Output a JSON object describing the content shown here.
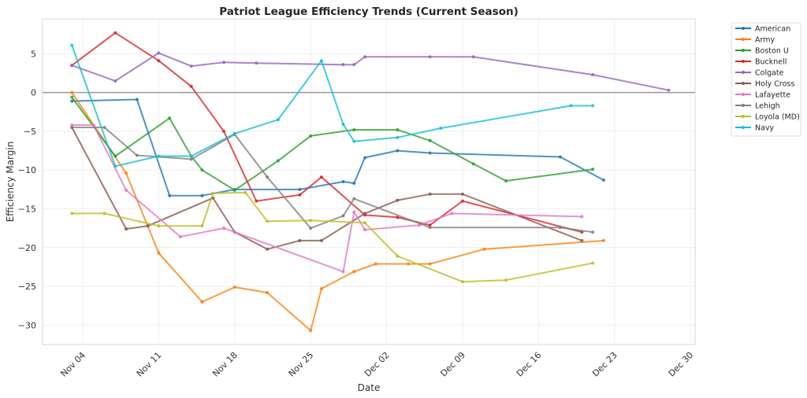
{
  "chart_data": {
    "type": "line",
    "title": "Patriot League Efficiency Trends (Current Season)",
    "xlabel": "Date",
    "ylabel": "Efficiency Margin",
    "x_range": [
      "Nov 01",
      "Dec 31"
    ],
    "ylim": [
      -32.5,
      9.5
    ],
    "x_ticks": [
      "Nov 04",
      "Nov 11",
      "Nov 18",
      "Nov 25",
      "Dec 02",
      "Dec 09",
      "Dec 16",
      "Dec 23",
      "Dec 30"
    ],
    "y_ticks": [
      5,
      0,
      -5,
      -10,
      -15,
      -20,
      -25,
      -30
    ],
    "y_tick_labels": [
      "5",
      "0",
      "−5",
      "−10",
      "−15",
      "−20",
      "−25",
      "−30"
    ],
    "grid": true,
    "reference_line": 0,
    "legend_position": "outside-top-right",
    "series": [
      {
        "name": "American",
        "color": "#1f77b4",
        "x": [
          "Nov 03",
          "Nov 09",
          "Nov 12",
          "Nov 15",
          "Nov 18",
          "Nov 24",
          "Nov 28",
          "Nov 29",
          "Nov 30",
          "Dec 03",
          "Dec 06",
          "Dec 18",
          "Dec 22"
        ],
        "values": [
          -1.1,
          -0.9,
          -13.3,
          -13.3,
          -12.5,
          -12.5,
          -11.5,
          -11.7,
          -8.4,
          -7.5,
          -7.8,
          -8.3,
          -11.3
        ]
      },
      {
        "name": "Army",
        "color": "#ff7f0e",
        "x": [
          "Nov 03",
          "Nov 08",
          "Nov 11",
          "Nov 15",
          "Nov 18",
          "Nov 21",
          "Nov 25",
          "Nov 26",
          "Nov 29",
          "Dec 01",
          "Dec 04",
          "Dec 06",
          "Dec 11",
          "Dec 22"
        ],
        "values": [
          0.0,
          -10.4,
          -20.7,
          -27.0,
          -25.1,
          -25.8,
          -30.7,
          -25.3,
          -23.1,
          -22.1,
          -22.1,
          -22.1,
          -20.2,
          -19.1
        ]
      },
      {
        "name": "Boston U",
        "color": "#2ca02c",
        "x": [
          "Nov 03",
          "Nov 07",
          "Nov 12",
          "Nov 14",
          "Nov 15",
          "Nov 18",
          "Nov 22",
          "Nov 25",
          "Nov 29",
          "Dec 03",
          "Dec 06",
          "Dec 10",
          "Dec 13",
          "Dec 21"
        ],
        "values": [
          -0.6,
          -8.2,
          -3.3,
          -8.2,
          -10.0,
          -12.6,
          -8.8,
          -5.6,
          -4.8,
          -4.8,
          -6.2,
          -9.2,
          -11.4,
          -9.9
        ]
      },
      {
        "name": "Bucknell",
        "color": "#d62728",
        "x": [
          "Nov 03",
          "Nov 07",
          "Nov 11",
          "Nov 14",
          "Nov 17",
          "Nov 20",
          "Nov 24",
          "Nov 26",
          "Nov 30",
          "Dec 03",
          "Dec 06",
          "Dec 09",
          "Dec 20"
        ],
        "values": [
          3.5,
          7.7,
          4.1,
          0.8,
          -5.0,
          -14.0,
          -13.2,
          -10.9,
          -15.8,
          -16.1,
          -17.1,
          -14.0,
          -18.0
        ]
      },
      {
        "name": "Colgate",
        "color": "#9467bd",
        "x": [
          "Nov 03",
          "Nov 07",
          "Nov 11",
          "Nov 14",
          "Nov 17",
          "Nov 20",
          "Nov 28",
          "Nov 29",
          "Nov 30",
          "Dec 06",
          "Dec 10",
          "Dec 21",
          "Dec 28"
        ],
        "values": [
          3.5,
          1.5,
          5.1,
          3.4,
          3.9,
          3.8,
          3.6,
          3.6,
          4.6,
          4.6,
          4.6,
          2.3,
          0.3
        ]
      },
      {
        "name": "Holy Cross",
        "color": "#8c564b",
        "x": [
          "Nov 03",
          "Nov 08",
          "Nov 10",
          "Nov 16",
          "Nov 18",
          "Nov 21",
          "Nov 24",
          "Nov 26",
          "Nov 30",
          "Dec 03",
          "Dec 06",
          "Dec 09",
          "Dec 20"
        ],
        "values": [
          -4.5,
          -17.6,
          -17.2,
          -13.6,
          -18.0,
          -20.2,
          -19.1,
          -19.1,
          -15.6,
          -13.9,
          -13.1,
          -13.1,
          -19.1
        ]
      },
      {
        "name": "Lafayette",
        "color": "#e377c2",
        "x": [
          "Nov 03",
          "Nov 05",
          "Nov 08",
          "Nov 13",
          "Nov 17",
          "Nov 18",
          "Nov 28",
          "Nov 29",
          "Nov 30",
          "Dec 05",
          "Dec 08",
          "Dec 20"
        ],
        "values": [
          -4.2,
          -4.2,
          -12.6,
          -18.6,
          -17.5,
          -18.0,
          -23.1,
          -15.4,
          -17.7,
          -17.1,
          -15.6,
          -16.0
        ]
      },
      {
        "name": "Lehigh",
        "color": "#7f7f7f",
        "x": [
          "Nov 03",
          "Nov 06",
          "Nov 09",
          "Nov 14",
          "Nov 18",
          "Nov 21",
          "Nov 25",
          "Nov 28",
          "Nov 29",
          "Dec 06",
          "Dec 18",
          "Dec 21"
        ],
        "values": [
          -4.5,
          -4.5,
          -8.1,
          -8.6,
          -5.4,
          -10.9,
          -17.5,
          -15.9,
          -13.7,
          -17.4,
          -17.4,
          -18.0
        ]
      },
      {
        "name": "Loyola (MD)",
        "color": "#bcbd22",
        "x": [
          "Nov 03",
          "Nov 06",
          "Nov 11",
          "Nov 15",
          "Nov 16",
          "Nov 19",
          "Nov 21",
          "Nov 25",
          "Nov 30",
          "Dec 03",
          "Dec 09",
          "Dec 13",
          "Dec 21"
        ],
        "values": [
          -15.6,
          -15.6,
          -17.2,
          -17.2,
          -13.0,
          -12.9,
          -16.6,
          -16.5,
          -16.8,
          -21.1,
          -24.4,
          -24.2,
          -22.0
        ]
      },
      {
        "name": "Navy",
        "color": "#17becf",
        "x": [
          "Nov 03",
          "Nov 07",
          "Nov 11",
          "Nov 14",
          "Nov 18",
          "Nov 22",
          "Nov 26",
          "Nov 28",
          "Nov 29",
          "Dec 03",
          "Dec 07",
          "Dec 19",
          "Dec 21"
        ],
        "values": [
          6.1,
          -9.5,
          -8.2,
          -8.2,
          -5.3,
          -3.5,
          4.1,
          -4.1,
          -6.3,
          -5.8,
          -4.6,
          -1.7,
          -1.7
        ]
      }
    ]
  }
}
